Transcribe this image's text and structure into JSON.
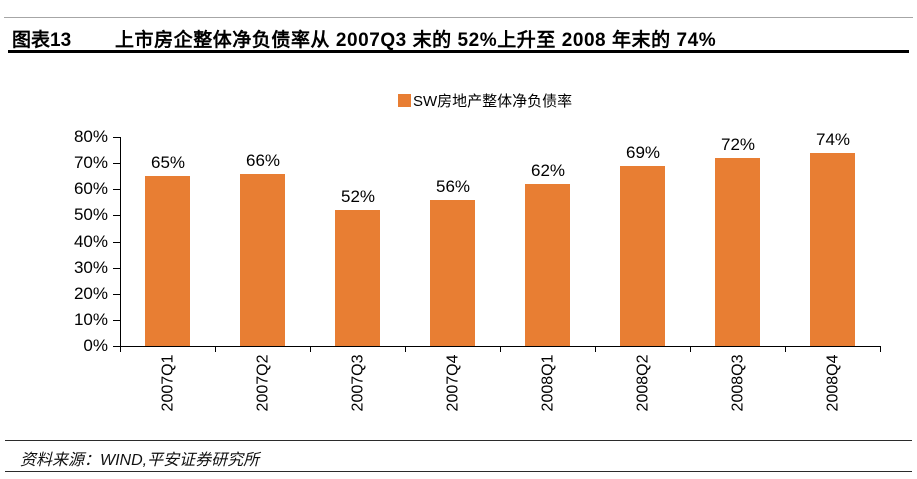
{
  "header": {
    "figure_label": "图表13",
    "title": "上市房企整体净负债率从 2007Q3 末的 52%上升至 2008 年末的 74%"
  },
  "legend": {
    "label": "SW房地产整体净负债率"
  },
  "chart_data": {
    "type": "bar",
    "title": "SW房地产整体净负债率",
    "categories": [
      "2007Q1",
      "2007Q2",
      "2007Q3",
      "2007Q4",
      "2008Q1",
      "2008Q2",
      "2008Q3",
      "2008Q4"
    ],
    "values": [
      65,
      66,
      52,
      56,
      62,
      69,
      72,
      74
    ],
    "value_labels": [
      "65%",
      "66%",
      "52%",
      "56%",
      "62%",
      "69%",
      "72%",
      "74%"
    ],
    "yticks": [
      0,
      10,
      20,
      30,
      40,
      50,
      60,
      70,
      80
    ],
    "ytick_labels": [
      "0%",
      "10%",
      "20%",
      "30%",
      "40%",
      "50%",
      "60%",
      "70%",
      "80%"
    ],
    "ylim": [
      0,
      80
    ],
    "bar_color": "#E87E33",
    "legend_position": "top-center",
    "grid": false
  },
  "footer": {
    "source": "资料来源：WIND,平安证券研究所"
  }
}
